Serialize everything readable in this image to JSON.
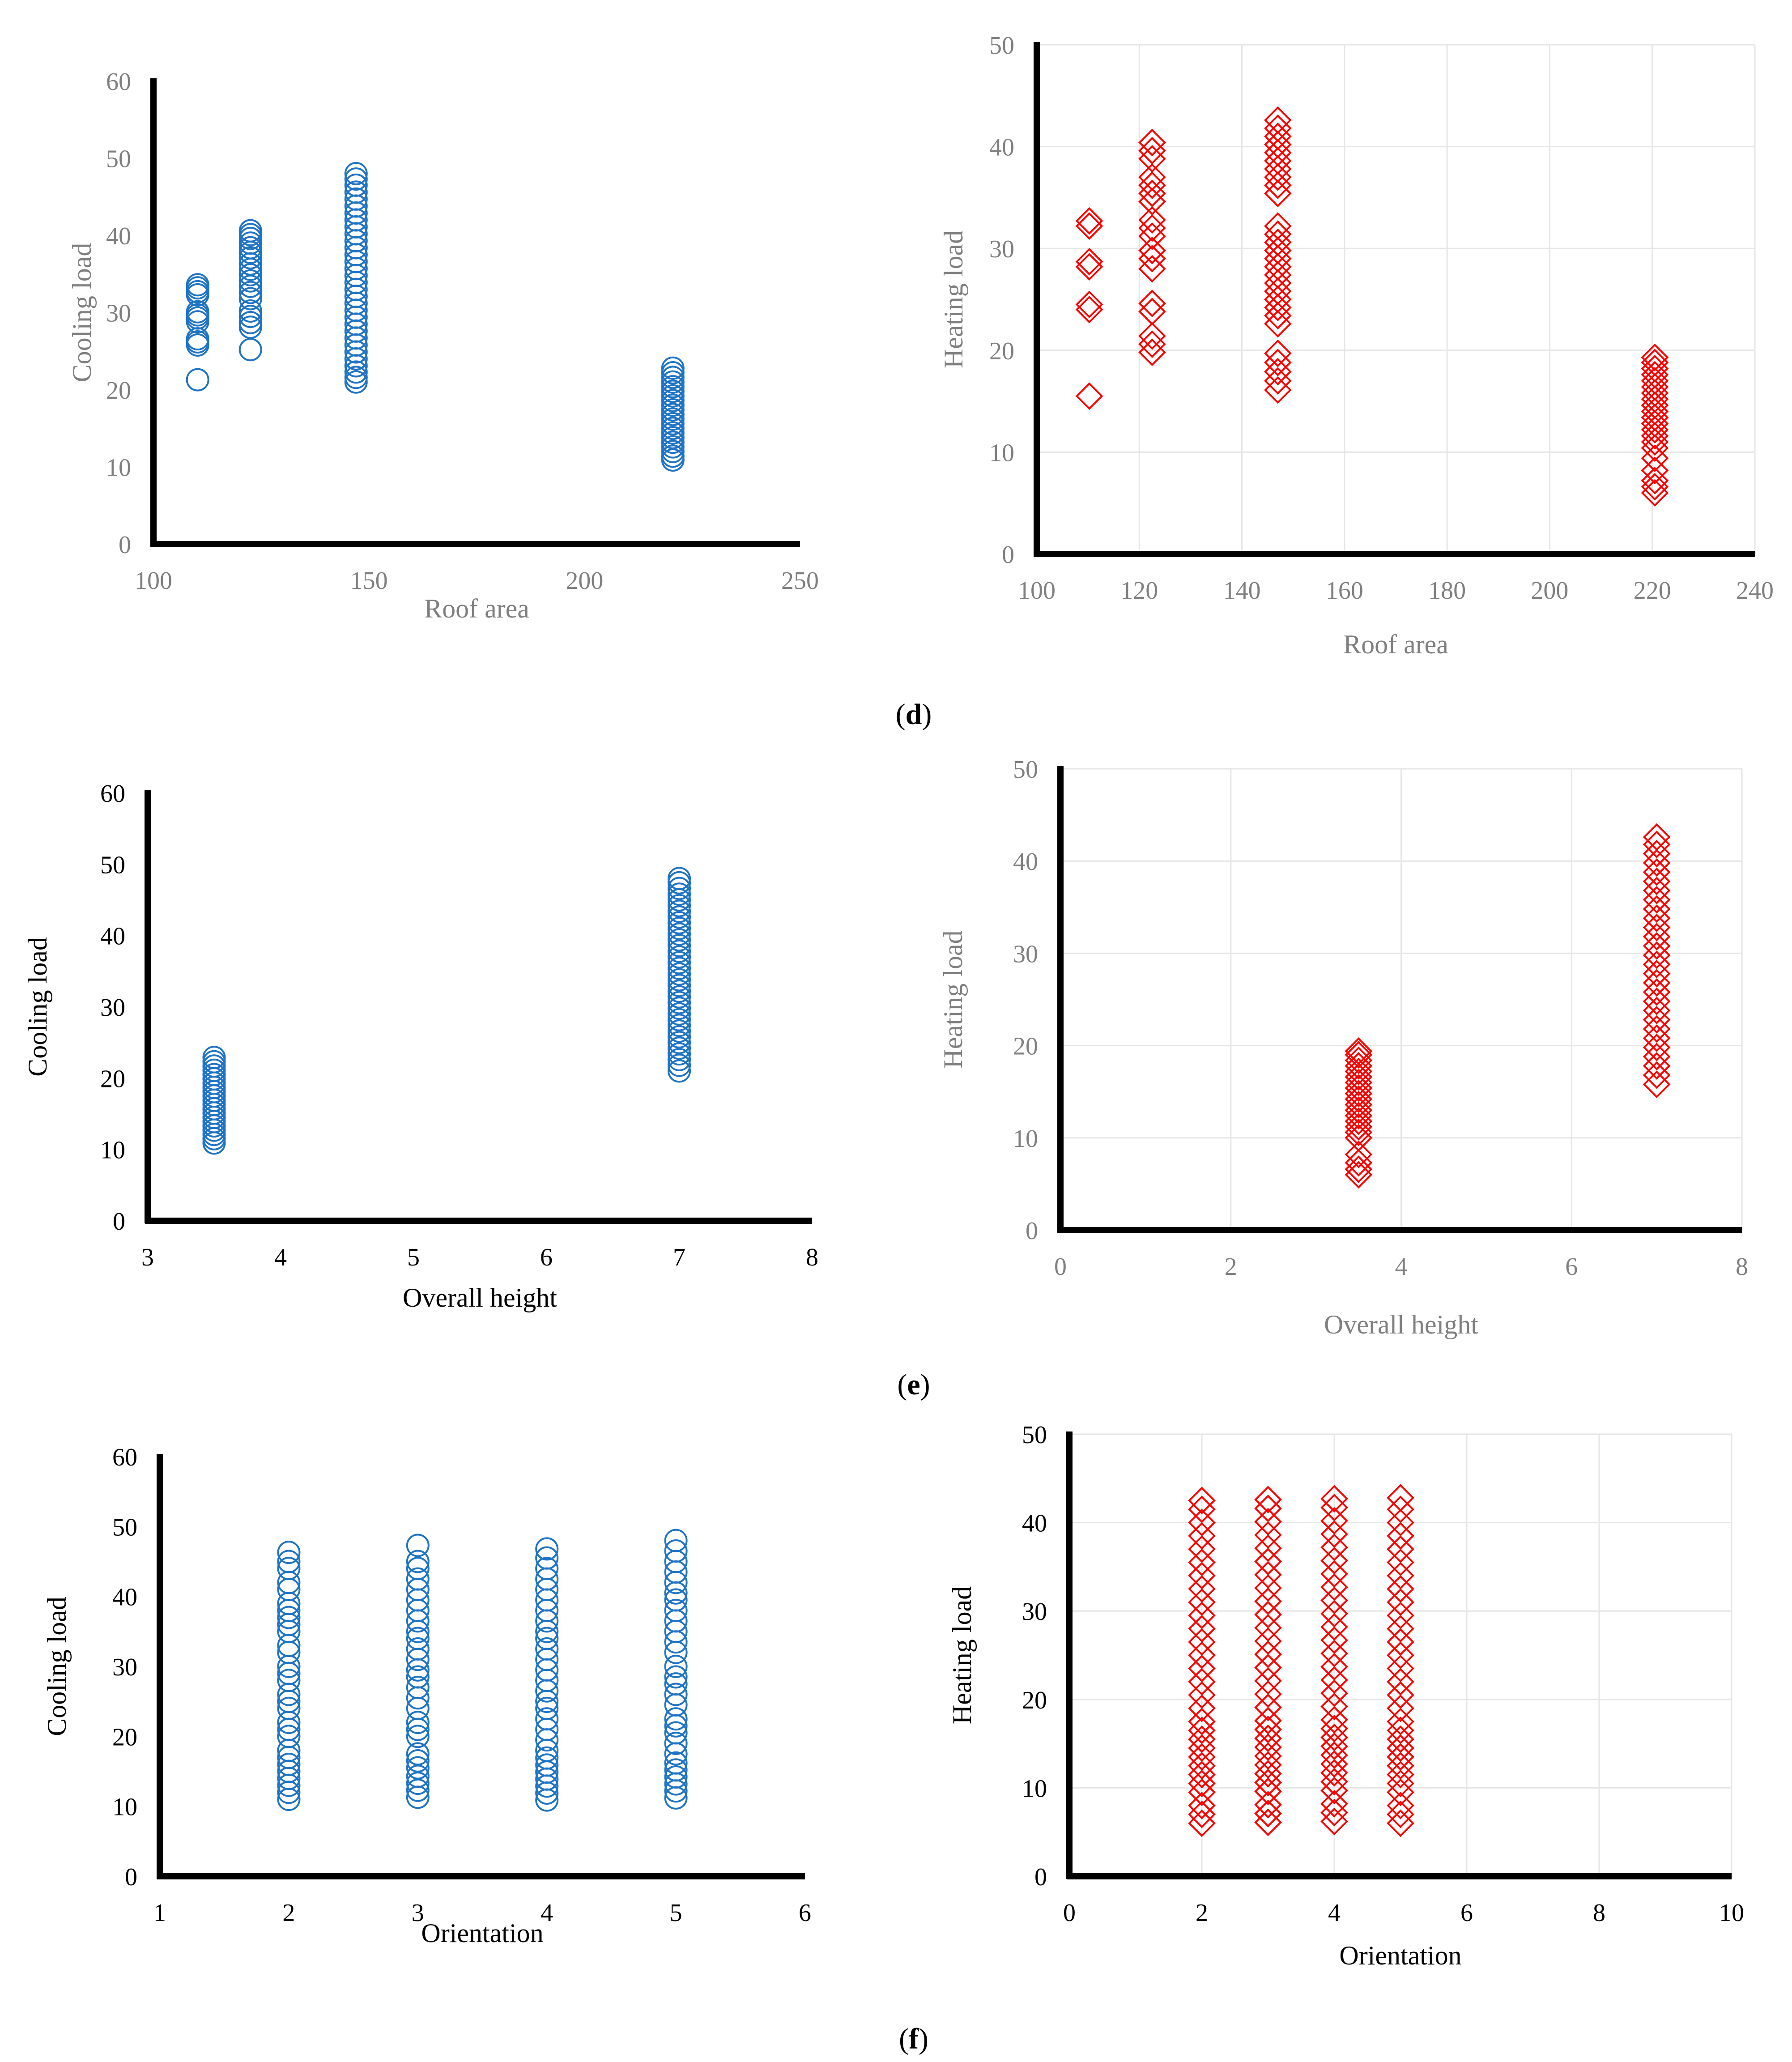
{
  "colors": {
    "cooling": "#1f73c4",
    "heating": "#ff0000",
    "axis": "#000000",
    "grid": "#e6e6e6",
    "text_gray": "#7f7f7f",
    "text_dark": "#000000"
  },
  "captions": [
    {
      "letter": "d",
      "open": "(",
      "close": ")"
    },
    {
      "letter": "e",
      "open": "(",
      "close": ")"
    },
    {
      "letter": "f",
      "open": "(",
      "close": ")"
    }
  ],
  "chart_data": [
    {
      "type": "scatter",
      "title": "",
      "xlabel": "Roof area",
      "ylabel": "Cooling load",
      "xlim": [
        100,
        250
      ],
      "ylim": [
        0,
        60
      ],
      "xticks": [
        100,
        150,
        200,
        250
      ],
      "yticks": [
        0,
        10,
        20,
        30,
        40,
        50,
        60
      ],
      "grid": false,
      "marker": "circle",
      "color": "cooling",
      "label_color": "text_gray",
      "columns": [
        {
          "x": 110.25,
          "y": [
            21.3,
            25.8,
            26.2,
            26.6,
            28.8,
            29.3,
            29.7,
            30.1,
            32.3,
            32.7,
            33.2,
            33.6
          ]
        },
        {
          "x": 122.5,
          "y": [
            25.2,
            28.1,
            28.7,
            29.5,
            30.2,
            31.8,
            32.6,
            33.4,
            34.1,
            34.9,
            35.6,
            36.3,
            37.1,
            37.8,
            38.4,
            39.0,
            39.6,
            40.1,
            40.6
          ]
        },
        {
          "x": 147,
          "y": [
            21.0,
            21.6,
            22.3,
            23.1,
            24.0,
            24.9,
            25.8,
            26.7,
            27.6,
            28.5,
            29.4,
            30.3,
            31.2,
            32.1,
            33.0,
            33.9,
            34.8,
            35.7,
            36.6,
            37.5,
            38.4,
            39.3,
            40.2,
            41.1,
            42.0,
            42.9,
            43.8,
            44.7,
            45.6,
            46.5,
            47.3,
            48.0
          ]
        },
        {
          "x": 220.5,
          "y": [
            10.9,
            11.4,
            12.0,
            12.6,
            13.2,
            13.8,
            14.4,
            15.0,
            15.6,
            16.2,
            16.8,
            17.4,
            18.0,
            18.6,
            19.2,
            19.8,
            20.4,
            21.0,
            21.6,
            22.2,
            22.8
          ]
        }
      ]
    },
    {
      "type": "scatter",
      "title": "",
      "xlabel": "Roof area",
      "ylabel": "Heating load",
      "xlim": [
        100,
        240
      ],
      "ylim": [
        0,
        50
      ],
      "xticks": [
        100,
        120,
        140,
        160,
        180,
        200,
        220,
        240
      ],
      "yticks": [
        0,
        10,
        20,
        30,
        40,
        50
      ],
      "grid": true,
      "marker": "diamond",
      "color": "heating",
      "label_color": "text_gray",
      "columns": [
        {
          "x": 110.25,
          "y": [
            15.5,
            24.0,
            24.5,
            28.2,
            28.7,
            32.2,
            32.7
          ]
        },
        {
          "x": 122.5,
          "y": [
            19.8,
            20.6,
            21.4,
            23.8,
            24.6,
            28.0,
            29.0,
            29.8,
            31.2,
            32.0,
            32.8,
            34.6,
            35.4,
            36.2,
            37.0,
            38.8,
            39.6,
            40.4
          ]
        },
        {
          "x": 147,
          "y": [
            16.1,
            17.0,
            17.9,
            18.8,
            19.7,
            22.6,
            23.4,
            24.2,
            25.0,
            25.8,
            26.6,
            27.4,
            28.2,
            29.0,
            29.8,
            30.6,
            31.4,
            32.2,
            35.4,
            36.2,
            37.0,
            37.8,
            38.6,
            39.4,
            40.2,
            41.0,
            41.8,
            42.6
          ]
        },
        {
          "x": 220.5,
          "y": [
            6.0,
            6.6,
            7.2,
            8.2,
            9.4,
            10.4,
            11.0,
            11.6,
            12.2,
            12.8,
            13.4,
            14.0,
            14.6,
            15.2,
            15.8,
            16.4,
            17.0,
            17.6,
            18.2,
            18.8,
            19.3
          ]
        }
      ]
    },
    {
      "type": "scatter",
      "title": "",
      "xlabel": "Overall height",
      "ylabel": "Cooling load",
      "xlim": [
        3,
        8
      ],
      "ylim": [
        0,
        60
      ],
      "xticks": [
        3,
        4,
        5,
        6,
        7,
        8
      ],
      "yticks": [
        0,
        10,
        20,
        30,
        40,
        50,
        60
      ],
      "grid": false,
      "marker": "circle",
      "color": "cooling",
      "label_color": "text_dark",
      "columns": [
        {
          "x": 3.5,
          "y": [
            10.9,
            11.5,
            12.1,
            12.7,
            13.3,
            13.9,
            14.5,
            15.1,
            15.7,
            16.3,
            16.9,
            17.5,
            18.1,
            18.7,
            19.3,
            19.9,
            20.5,
            21.1,
            21.7,
            22.3,
            22.9
          ]
        },
        {
          "x": 7,
          "y": [
            21.0,
            21.8,
            22.6,
            23.4,
            24.2,
            25.0,
            25.8,
            26.6,
            27.4,
            28.2,
            29.0,
            29.8,
            30.6,
            31.4,
            32.2,
            33.0,
            33.8,
            34.6,
            35.4,
            36.2,
            37.0,
            37.8,
            38.6,
            39.4,
            40.2,
            41.0,
            41.8,
            42.6,
            43.4,
            44.2,
            45.0,
            45.8,
            46.6,
            47.4,
            48.0
          ]
        }
      ]
    },
    {
      "type": "scatter",
      "title": "",
      "xlabel": "Overall height",
      "ylabel": "Heating load",
      "xlim": [
        0,
        8
      ],
      "ylim": [
        0,
        50
      ],
      "xticks": [
        0,
        2,
        4,
        6,
        8
      ],
      "yticks": [
        0,
        10,
        20,
        30,
        40,
        50
      ],
      "grid": true,
      "marker": "diamond",
      "color": "heating",
      "label_color": "text_gray",
      "columns": [
        {
          "x": 3.5,
          "y": [
            6.0,
            6.6,
            7.3,
            8.2,
            10.0,
            10.6,
            11.2,
            11.8,
            12.4,
            13.0,
            13.6,
            14.2,
            14.8,
            15.4,
            16.0,
            16.6,
            17.2,
            17.8,
            18.4,
            19.0,
            19.4
          ]
        },
        {
          "x": 7,
          "y": [
            15.8,
            16.8,
            17.8,
            18.8,
            19.8,
            20.8,
            21.8,
            22.8,
            23.8,
            24.8,
            25.8,
            26.8,
            27.8,
            28.8,
            29.8,
            30.8,
            31.8,
            32.8,
            33.8,
            34.8,
            35.8,
            36.8,
            37.8,
            38.8,
            39.8,
            40.8,
            41.8,
            42.6
          ]
        }
      ]
    },
    {
      "type": "scatter",
      "title": "",
      "xlabel": "Orientation",
      "ylabel": "Cooling load",
      "xlim": [
        1,
        6
      ],
      "ylim": [
        0,
        60
      ],
      "xticks": [
        1,
        2,
        3,
        4,
        5,
        6
      ],
      "yticks": [
        0,
        10,
        20,
        30,
        40,
        50,
        60
      ],
      "grid": false,
      "marker": "circle",
      "color": "cooling",
      "label_color": "text_dark",
      "columns": [
        {
          "x": 2,
          "y": [
            11.0,
            12.0,
            13.0,
            14.0,
            15.0,
            16.0,
            17.0,
            18.0,
            20.0,
            21.0,
            22.0,
            24.0,
            25.0,
            26.0,
            28.0,
            29.0,
            30.0,
            32.0,
            33.0,
            35.0,
            36.0,
            37.0,
            38.0,
            39.0,
            41.0,
            42.0,
            44.0,
            45.0,
            46.3
          ]
        },
        {
          "x": 3,
          "y": [
            11.3,
            12.3,
            13.3,
            14.3,
            15.5,
            16.5,
            17.5,
            20.0,
            21.0,
            22.0,
            24.0,
            25.5,
            27.0,
            28.5,
            29.5,
            31.0,
            32.5,
            34.0,
            35.0,
            36.5,
            38.0,
            39.5,
            41.0,
            42.5,
            44.0,
            45.0,
            47.3
          ]
        },
        {
          "x": 4,
          "y": [
            10.9,
            11.9,
            12.9,
            13.9,
            14.9,
            15.9,
            16.9,
            18.0,
            19.5,
            21.0,
            22.5,
            24.0,
            25.0,
            26.5,
            28.0,
            29.5,
            31.0,
            32.5,
            34.0,
            35.0,
            36.5,
            38.0,
            39.5,
            41.0,
            42.5,
            44.0,
            45.5,
            46.8
          ]
        },
        {
          "x": 5,
          "y": [
            11.2,
            12.2,
            13.2,
            14.2,
            15.2,
            16.2,
            17.5,
            19.0,
            20.5,
            21.5,
            22.5,
            24.5,
            26.0,
            27.5,
            28.5,
            30.0,
            32.0,
            33.5,
            35.0,
            36.5,
            38.0,
            39.5,
            40.5,
            42.0,
            43.5,
            45.0,
            46.5,
            48.0
          ]
        }
      ]
    },
    {
      "type": "scatter",
      "title": "",
      "xlabel": "Orientation",
      "ylabel": "Heating load",
      "xlim": [
        0,
        10
      ],
      "ylim": [
        0,
        50
      ],
      "xticks": [
        0,
        2,
        4,
        6,
        8,
        10
      ],
      "yticks": [
        0,
        10,
        20,
        30,
        40,
        50
      ],
      "grid": true,
      "marker": "diamond",
      "color": "heating",
      "label_color": "text_dark",
      "columns": [
        {
          "x": 2,
          "y": [
            6.0,
            7.0,
            8.0,
            9.5,
            10.5,
            11.5,
            12.5,
            13.5,
            14.5,
            15.5,
            16.5,
            17.5,
            19.0,
            20.5,
            22.0,
            23.5,
            25.0,
            26.5,
            28.0,
            29.5,
            31.0,
            32.5,
            34.0,
            35.5,
            37.0,
            38.5,
            40.0,
            41.5,
            42.5
          ]
        },
        {
          "x": 3,
          "y": [
            6.1,
            7.1,
            8.1,
            9.6,
            10.6,
            11.6,
            12.6,
            13.6,
            14.6,
            15.6,
            16.6,
            17.6,
            19.1,
            20.6,
            22.1,
            23.6,
            25.1,
            26.6,
            28.1,
            29.6,
            31.1,
            32.6,
            34.1,
            35.6,
            37.1,
            38.6,
            40.1,
            41.6,
            42.6
          ]
        },
        {
          "x": 4,
          "y": [
            6.2,
            7.2,
            8.2,
            9.7,
            10.7,
            11.7,
            12.7,
            13.7,
            14.7,
            15.7,
            16.7,
            17.7,
            19.2,
            20.7,
            22.2,
            23.7,
            25.2,
            26.7,
            28.2,
            29.7,
            31.2,
            32.7,
            34.2,
            35.7,
            37.2,
            38.7,
            40.2,
            41.7,
            42.7
          ]
        },
        {
          "x": 5,
          "y": [
            6.0,
            7.0,
            8.0,
            9.5,
            10.5,
            11.5,
            12.5,
            13.5,
            14.5,
            15.5,
            16.5,
            17.5,
            19.0,
            20.5,
            22.0,
            23.5,
            25.0,
            26.5,
            28.0,
            29.5,
            31.0,
            32.5,
            34.0,
            35.5,
            37.0,
            38.5,
            40.0,
            41.5,
            42.8
          ]
        }
      ]
    }
  ]
}
